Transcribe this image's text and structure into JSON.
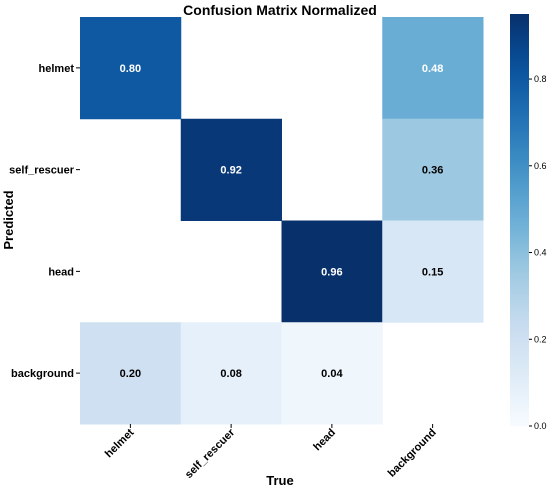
{
  "chart_data": {
    "type": "heatmap",
    "title": "Confusion Matrix Normalized",
    "xlabel": "True",
    "ylabel": "Predicted",
    "x_categories": [
      "helmet",
      "self_rescuer",
      "head",
      "background"
    ],
    "y_categories": [
      "helmet",
      "self_rescuer",
      "head",
      "background"
    ],
    "values": [
      [
        0.8,
        null,
        null,
        0.48
      ],
      [
        null,
        0.92,
        null,
        0.36
      ],
      [
        null,
        null,
        0.96,
        0.15
      ],
      [
        0.2,
        0.08,
        0.04,
        null
      ]
    ],
    "cell_labels": [
      [
        "0.80",
        "",
        "",
        "0.48"
      ],
      [
        "",
        "0.92",
        "",
        "0.36"
      ],
      [
        "",
        "",
        "0.96",
        "0.15"
      ],
      [
        "0.20",
        "0.08",
        "0.04",
        ""
      ]
    ],
    "colorbar": {
      "range": [
        0.0,
        0.95
      ],
      "ticks": [
        0.0,
        0.2,
        0.4,
        0.6,
        0.8
      ],
      "tick_labels": [
        "0.0",
        "0.2",
        "0.4",
        "0.6",
        "0.8"
      ],
      "colormap": "Blues"
    }
  }
}
